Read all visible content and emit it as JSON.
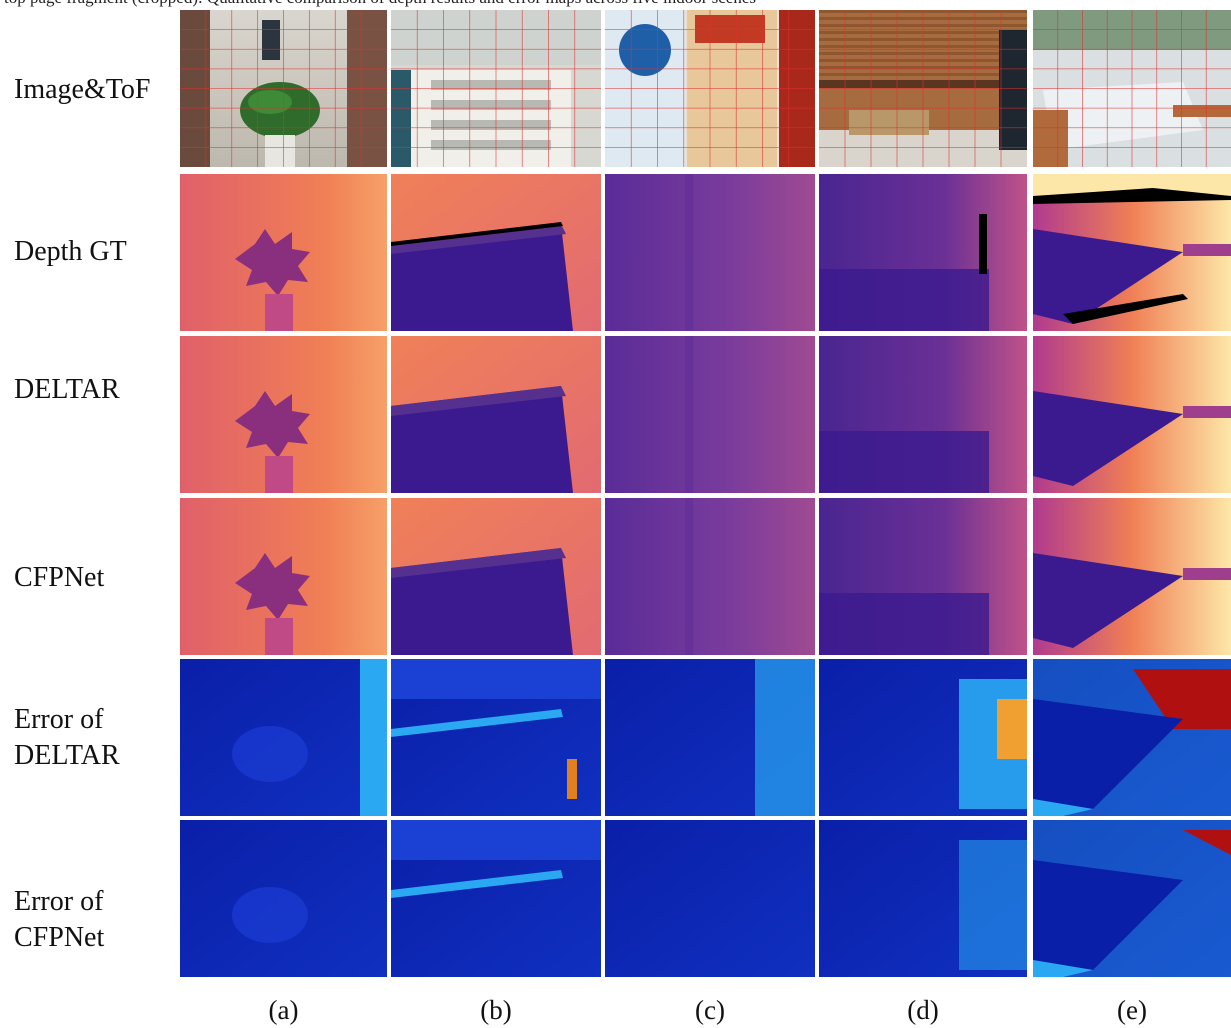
{
  "caption_fragment": "top page fragment (cropped): Qualitative comparison of depth results and error maps across five indoor scenes",
  "rows": [
    {
      "label": "Image&ToF",
      "kind": "rgb"
    },
    {
      "label": "Depth GT",
      "kind": "depth_gt"
    },
    {
      "label": "DELTAR",
      "kind": "depth"
    },
    {
      "label": "CFPNet",
      "kind": "depth"
    },
    {
      "label": "Error of\nDELTAR",
      "kind": "error"
    },
    {
      "label": "Error of\nCFPNet",
      "kind": "error2"
    }
  ],
  "columns": [
    {
      "label": "(a)",
      "scene": "plant"
    },
    {
      "label": "(b)",
      "scene": "shoe-rack"
    },
    {
      "label": "(c)",
      "scene": "poster-wall"
    },
    {
      "label": "(d)",
      "scene": "bar-shelf"
    },
    {
      "label": "(e)",
      "scene": "table"
    }
  ],
  "colors": {
    "depth_near": "#3b1a8f",
    "depth_mid": "#b03a8f",
    "depth_far": "#f07f55",
    "depth_very_far": "#fde7a8",
    "error_low": "#0a1fa8",
    "error_mid": "#2aa8f2",
    "error_high": "#b01010",
    "tof_grid": "#e03030"
  }
}
